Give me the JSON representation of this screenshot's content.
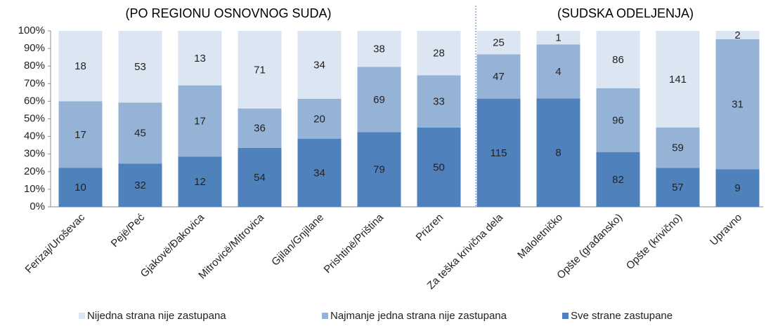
{
  "chart_data": {
    "type": "stacked_bar",
    "stacking": "percent",
    "group_labels": [
      "(PO REGIONU OSNOVNOG SUDA)",
      "(SUDSKA ODELJENJA)"
    ],
    "group_split": 7,
    "categories": [
      "Ferizaj/Uroševac",
      "Pejë/Peć",
      "Gjakovë/Đakovica",
      "Mitrovicë/Mitrovica",
      "Gjilan/Gnjilane",
      "Prishtinë/Priština",
      "Prizren",
      "Za teška krivična dela",
      "Maloletničko",
      "Opšte (građansko)",
      "Opšte (krivično)",
      "Upravno"
    ],
    "series": [
      {
        "name": "Sve strane zastupane",
        "color": "#4f81bd",
        "values": [
          10,
          32,
          12,
          54,
          34,
          79,
          50,
          115,
          8,
          82,
          57,
          9
        ]
      },
      {
        "name": "Najmanje jedna strana nije zastupana",
        "color": "#95b3d7",
        "values": [
          17,
          45,
          17,
          36,
          20,
          69,
          33,
          47,
          4,
          96,
          59,
          31
        ]
      },
      {
        "name": "Nijedna strana nije zastupana",
        "color": "#dce6f2",
        "values": [
          18,
          53,
          13,
          71,
          34,
          38,
          28,
          25,
          1,
          86,
          141,
          2
        ]
      }
    ],
    "legend_order": [
      2,
      1,
      0
    ],
    "ylim": [
      0,
      100
    ],
    "yticks": [
      {
        "value": 0,
        "label": "0%"
      },
      {
        "value": 10,
        "label": "10%"
      },
      {
        "value": 20,
        "label": "20%"
      },
      {
        "value": 30,
        "label": "30%"
      },
      {
        "value": 40,
        "label": "40%"
      },
      {
        "value": 50,
        "label": "50%"
      },
      {
        "value": 60,
        "label": "60%"
      },
      {
        "value": 70,
        "label": "70%"
      },
      {
        "value": 80,
        "label": "80%"
      },
      {
        "value": 90,
        "label": "90%"
      },
      {
        "value": 100,
        "label": "100%"
      }
    ]
  }
}
